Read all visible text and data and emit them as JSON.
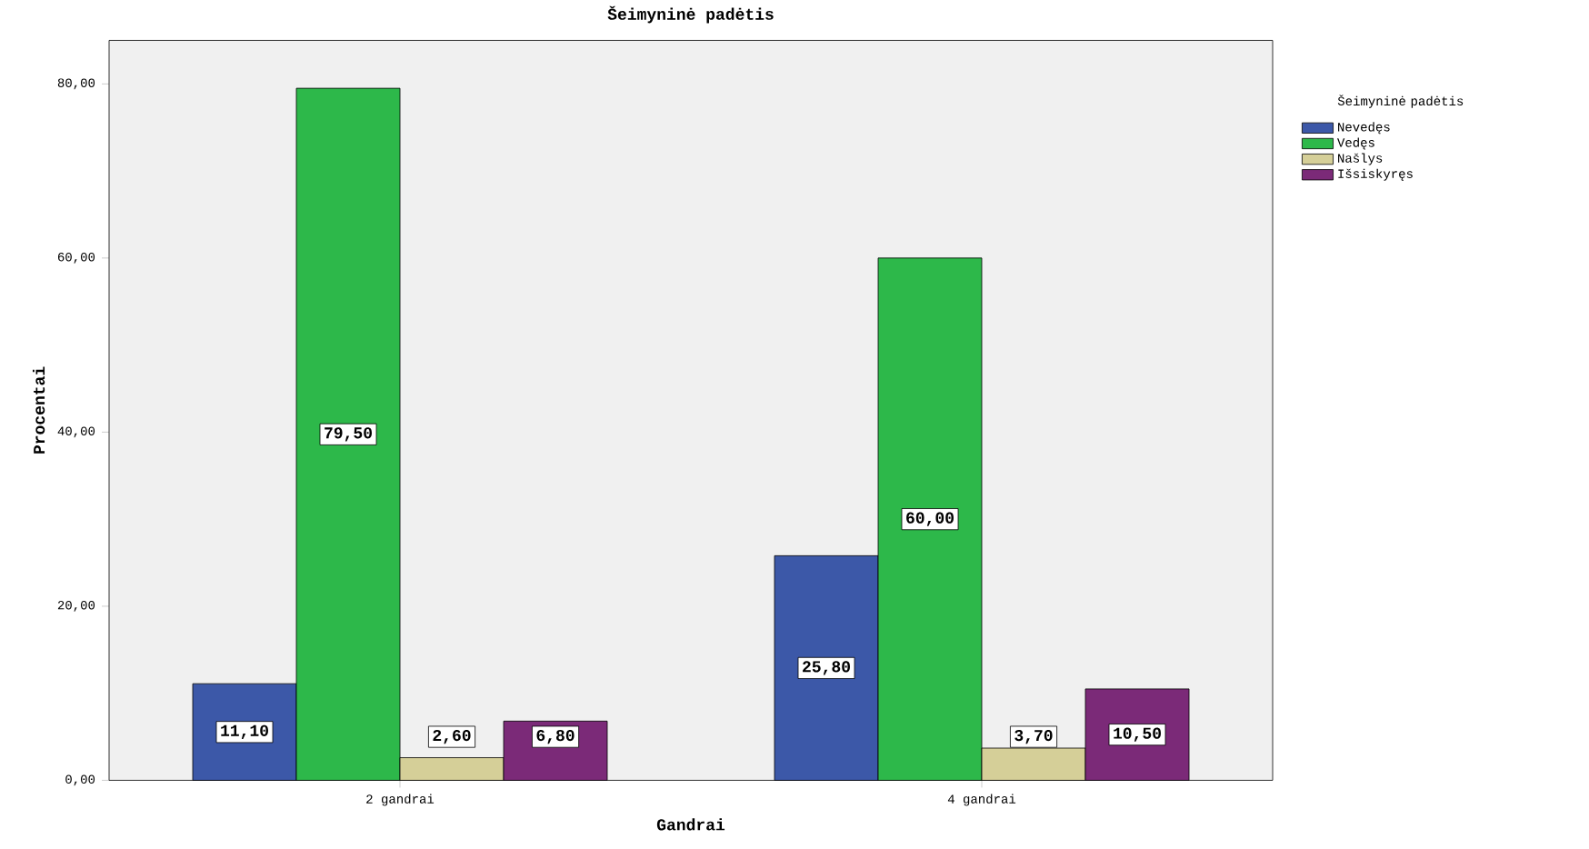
{
  "chart_data": {
    "type": "bar",
    "title": "Šeimyninė padėtis",
    "xlabel": "Gandrai",
    "ylabel": "Procentai",
    "legend_title": "Šeimyninė padėtis",
    "categories": [
      "2 gandrai",
      "4 gandrai"
    ],
    "series": [
      {
        "name": "Nevedęs",
        "color": "#3c58a8",
        "values": [
          11.1,
          25.8
        ],
        "value_labels": [
          "11,10",
          "25,80"
        ]
      },
      {
        "name": "Vedęs",
        "color": "#2db84a",
        "values": [
          79.5,
          60.0
        ],
        "value_labels": [
          "79,50",
          "60,00"
        ]
      },
      {
        "name": "Našlys",
        "color": "#d5cf98",
        "values": [
          2.6,
          3.7
        ],
        "value_labels": [
          "2,60",
          "3,70"
        ]
      },
      {
        "name": "Išsiskyręs",
        "color": "#7b2a78",
        "values": [
          6.8,
          10.5
        ],
        "value_labels": [
          "6,80",
          "10,50"
        ]
      }
    ],
    "ylim": [
      0,
      85
    ],
    "yticks": [
      {
        "value": 0,
        "label": "0,00"
      },
      {
        "value": 20,
        "label": "20,00"
      },
      {
        "value": 40,
        "label": "40,00"
      },
      {
        "value": 60,
        "label": "60,00"
      },
      {
        "value": 80,
        "label": "80,00"
      }
    ],
    "grid": false,
    "legend": "right"
  }
}
